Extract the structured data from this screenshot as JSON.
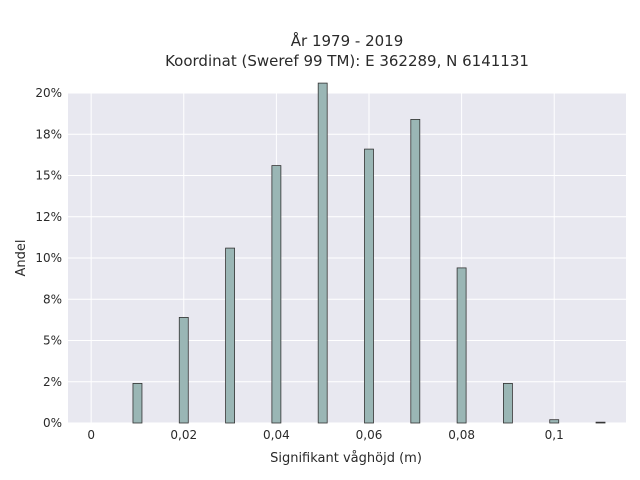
{
  "chart_data": {
    "type": "bar",
    "title_line1": "År 1979 - 2019",
    "title_line2": "Koordinat (Sweref 99 TM): E 362289, N 6141131",
    "xlabel": "Signifikant våghöjd (m)",
    "ylabel": "Andel",
    "x": [
      0.0,
      0.01,
      0.02,
      0.03,
      0.04,
      0.05,
      0.06,
      0.07,
      0.08,
      0.09,
      0.1,
      0.11
    ],
    "values": [
      0.0,
      2.4,
      6.4,
      10.6,
      15.6,
      20.6,
      16.6,
      18.4,
      9.4,
      2.4,
      0.2,
      0.05
    ],
    "xlim": [
      -0.005,
      0.1155
    ],
    "ylim": [
      0,
      20.0
    ],
    "x_ticks": [
      0,
      0.02,
      0.04,
      0.06,
      0.08,
      0.1
    ],
    "x_tick_labels": [
      "0",
      "0,02",
      "0,04",
      "0,06",
      "0,08",
      "0,1"
    ],
    "y_ticks": [
      0,
      2.5,
      5,
      7.5,
      10,
      12.5,
      15,
      17.5,
      20
    ],
    "y_tick_labels": [
      "0%",
      "2%",
      "5%",
      "8%",
      "10%",
      "12%",
      "15%",
      "18%",
      "20%"
    ],
    "grid": true,
    "colors": {
      "bar_fill": "#9ab6b5",
      "bar_stroke": "#333333",
      "plot_bg": "#e8e8f0",
      "grid": "#ffffff"
    }
  }
}
